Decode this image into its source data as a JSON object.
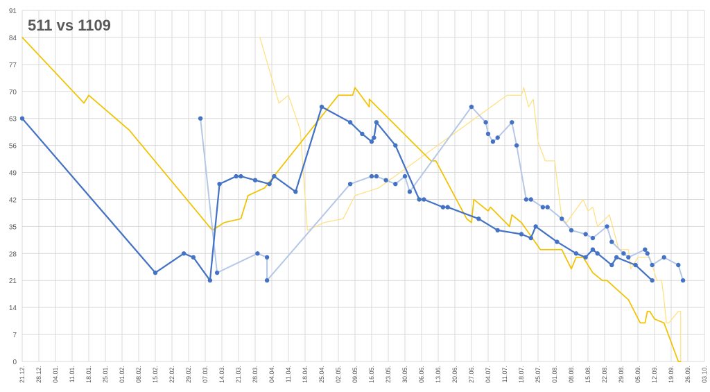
{
  "chart_data": {
    "type": "line",
    "title": "511 vs 1109",
    "ylim": [
      0,
      91
    ],
    "yticks": [
      0,
      7,
      14,
      21,
      28,
      35,
      42,
      49,
      56,
      63,
      70,
      77,
      84,
      91
    ],
    "x_tick_labels": [
      "21.12.",
      "28.12.",
      "04.01.",
      "11.01.",
      "18.01.",
      "25.01.",
      "01.02.",
      "08.02.",
      "15.02.",
      "22.02.",
      "29.02.",
      "07.03.",
      "14.03.",
      "21.03.",
      "28.03.",
      "04.04.",
      "11.04.",
      "18.04.",
      "25.04.",
      "02.05.",
      "09.05.",
      "16.05.",
      "23.05.",
      "30.05.",
      "06.06.",
      "13.06.",
      "20.06.",
      "27.06.",
      "04.07.",
      "11.07.",
      "18.07.",
      "25.07.",
      "01.08.",
      "08.08.",
      "15.08.",
      "22.08.",
      "29.08.",
      "05.09.",
      "12.09.",
      "19.09.",
      "26.09.",
      "03.10."
    ],
    "grid": true,
    "colors": {
      "dark_blue": "#4472C4",
      "light_blue": "#B4C7E7",
      "dark_yellow": "#F2C200",
      "light_yellow": "#FFE080",
      "grid": "#D9D9D9",
      "axis_text": "#595959"
    },
    "series": [
      {
        "color": "#4472C4",
        "markers": true,
        "points": [
          [
            0,
            63
          ],
          [
            56,
            23
          ],
          [
            68,
            28
          ],
          [
            72,
            27
          ],
          [
            79,
            21
          ],
          [
            83,
            46
          ],
          [
            90,
            48
          ],
          [
            92,
            48
          ],
          [
            98,
            47
          ],
          [
            104,
            46
          ],
          [
            106,
            48
          ],
          [
            115,
            44
          ],
          [
            126,
            66
          ],
          [
            138,
            62
          ],
          [
            143,
            59
          ],
          [
            147,
            57
          ],
          [
            148,
            58
          ],
          [
            149,
            62
          ],
          [
            157,
            56
          ],
          [
            167,
            42
          ],
          [
            169,
            42
          ],
          [
            177,
            40
          ],
          [
            179,
            40
          ],
          [
            192,
            37
          ],
          [
            200,
            34
          ],
          [
            210,
            33
          ],
          [
            214,
            32
          ],
          [
            216,
            35
          ],
          [
            225,
            31
          ],
          [
            233,
            28
          ],
          [
            237,
            27
          ],
          [
            240,
            29
          ],
          [
            242,
            28
          ],
          [
            248,
            25
          ],
          [
            250,
            27
          ],
          [
            258,
            25
          ],
          [
            265,
            21
          ]
        ]
      },
      {
        "color": "#B4C7E7",
        "markers": true,
        "points": [
          [
            75,
            63
          ],
          [
            82,
            23
          ],
          [
            99,
            28
          ],
          [
            103,
            27
          ],
          [
            103,
            21
          ],
          [
            138,
            46
          ],
          [
            147,
            48
          ],
          [
            149,
            48
          ],
          [
            153,
            47
          ],
          [
            157,
            46
          ],
          [
            161,
            48
          ],
          [
            163,
            44
          ],
          [
            189,
            66
          ],
          [
            195,
            62
          ],
          [
            196,
            59
          ],
          [
            198,
            57
          ],
          [
            200,
            58
          ],
          [
            206,
            62
          ],
          [
            208,
            56
          ],
          [
            212,
            42
          ],
          [
            214,
            42
          ],
          [
            219,
            40
          ],
          [
            221,
            40
          ],
          [
            227,
            37
          ],
          [
            231,
            34
          ],
          [
            237,
            33
          ],
          [
            240,
            32
          ],
          [
            246,
            35
          ],
          [
            248,
            31
          ],
          [
            253,
            28
          ],
          [
            255,
            27
          ],
          [
            262,
            29
          ],
          [
            263,
            28
          ],
          [
            265,
            25
          ],
          [
            270,
            27
          ],
          [
            276,
            25
          ],
          [
            278,
            21
          ]
        ]
      },
      {
        "color": "#F2C200",
        "markers": false,
        "points": [
          [
            0,
            84
          ],
          [
            26,
            67
          ],
          [
            28,
            69
          ],
          [
            45,
            60
          ],
          [
            80,
            34
          ],
          [
            85,
            36
          ],
          [
            92,
            37
          ],
          [
            95,
            43
          ],
          [
            102,
            45
          ],
          [
            133,
            69
          ],
          [
            139,
            69
          ],
          [
            140,
            71
          ],
          [
            146,
            66
          ],
          [
            146,
            68
          ],
          [
            172,
            52
          ],
          [
            174,
            52
          ],
          [
            187,
            37
          ],
          [
            189,
            36
          ],
          [
            190,
            42
          ],
          [
            196,
            39
          ],
          [
            197,
            40
          ],
          [
            205,
            35
          ],
          [
            206,
            38
          ],
          [
            210,
            36
          ],
          [
            218,
            29
          ],
          [
            227,
            29
          ],
          [
            231,
            24
          ],
          [
            233,
            27
          ],
          [
            236,
            27
          ],
          [
            240,
            23
          ],
          [
            244,
            21
          ],
          [
            246,
            21
          ],
          [
            255,
            16
          ],
          [
            260,
            10
          ],
          [
            262,
            10
          ],
          [
            263,
            13
          ],
          [
            264,
            13
          ],
          [
            266,
            11
          ],
          [
            270,
            10
          ],
          [
            276,
            0
          ],
          [
            277,
            0
          ]
        ]
      },
      {
        "color": "#FFE080",
        "markers": false,
        "points": [
          [
            100,
            84
          ],
          [
            108,
            67
          ],
          [
            112,
            69
          ],
          [
            117,
            60
          ],
          [
            120,
            34
          ],
          [
            127,
            36
          ],
          [
            135,
            37
          ],
          [
            140,
            43
          ],
          [
            150,
            45
          ],
          [
            204,
            69
          ],
          [
            210,
            69
          ],
          [
            211,
            71
          ],
          [
            213,
            66
          ],
          [
            215,
            68
          ],
          [
            217,
            57
          ],
          [
            220,
            52
          ],
          [
            224,
            52
          ],
          [
            227,
            37
          ],
          [
            229,
            36
          ],
          [
            236,
            42
          ],
          [
            238,
            39
          ],
          [
            240,
            40
          ],
          [
            242,
            35
          ],
          [
            247,
            38
          ],
          [
            251,
            29
          ],
          [
            255,
            29
          ],
          [
            256,
            24
          ],
          [
            259,
            27
          ],
          [
            264,
            27
          ],
          [
            267,
            21
          ],
          [
            269,
            21
          ],
          [
            270,
            16
          ],
          [
            271,
            10
          ],
          [
            272,
            10
          ],
          [
            276,
            13
          ],
          [
            277,
            13
          ],
          [
            277,
            0
          ]
        ]
      }
    ]
  }
}
